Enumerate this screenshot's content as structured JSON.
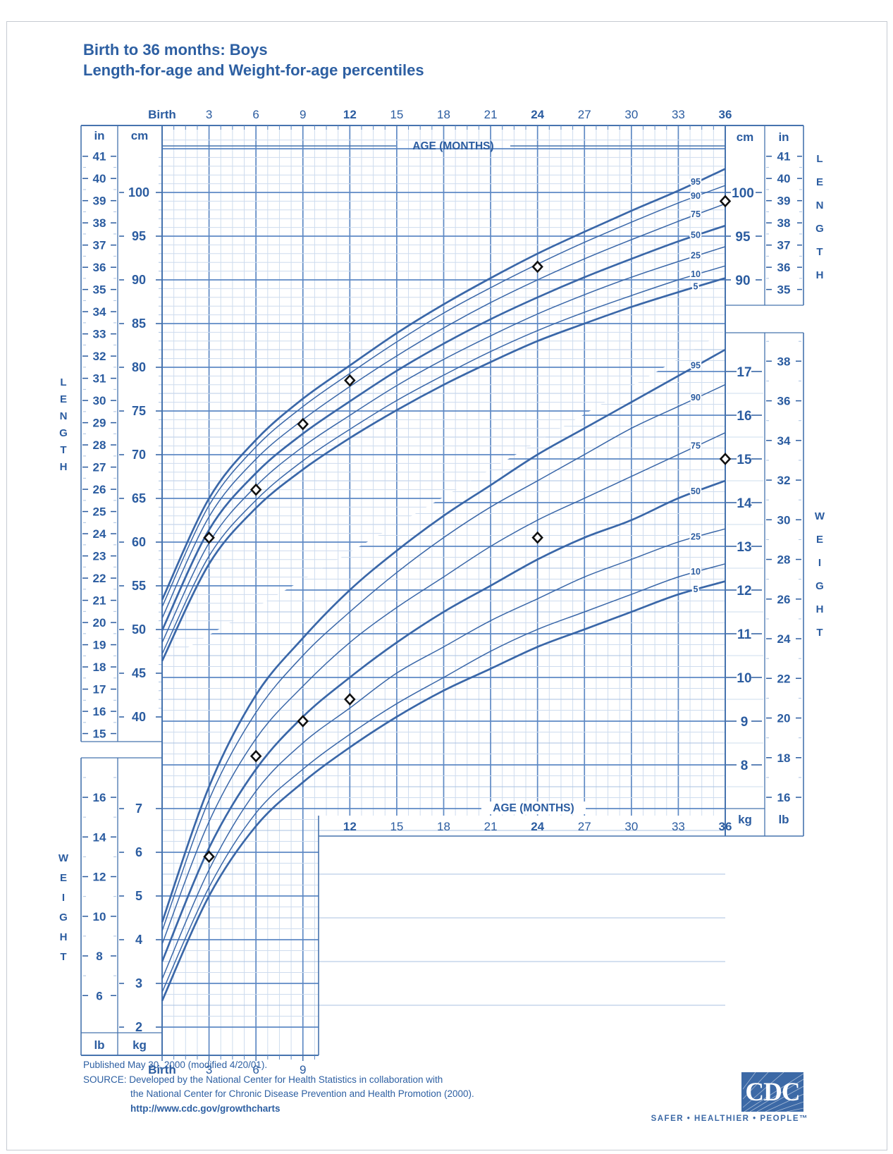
{
  "page": {
    "title_line1": "Birth to 36 months: Boys",
    "title_line2": "Length-for-age and Weight-for-age percentiles",
    "footer": {
      "published": "Published May 30, 2000 (modified 4/20/01).",
      "source_line1": "SOURCE: Developed by the National Center for Health Statistics in collaboration with",
      "source_line2": "the National Center for Chronic Disease Prevention and Health Promotion (2000).",
      "url": "http://www.cdc.gov/growthcharts"
    },
    "logo": {
      "text": "CDC",
      "tagline": "SAFER • HEALTHIER • PEOPLE™"
    }
  },
  "labels": {
    "age_axis": "AGE (MONTHS)",
    "length_vertical": "LENGTH",
    "weight_vertical": "WEIGHT",
    "in": "in",
    "cm": "cm",
    "kg": "kg",
    "lb": "lb",
    "birth": "Birth"
  },
  "scales": {
    "months_top": [
      "Birth",
      "3",
      "6",
      "9",
      "12",
      "15",
      "18",
      "21",
      "24",
      "27",
      "30",
      "33",
      "36"
    ],
    "months_bottom_right": [
      "12",
      "15",
      "18",
      "21",
      "24",
      "27",
      "30",
      "33",
      "36"
    ],
    "months_bottom_left": [
      "Birth",
      "3",
      "6",
      "9"
    ],
    "months_emphasized": [
      "Birth",
      "12",
      "24",
      "36"
    ],
    "left_in": [
      41,
      40,
      39,
      38,
      37,
      36,
      35,
      34,
      33,
      32,
      31,
      30,
      29,
      28,
      27,
      26,
      25,
      24,
      23,
      22,
      21,
      20,
      19,
      18,
      17,
      16,
      15
    ],
    "left_cm": [
      100,
      95,
      90,
      85,
      80,
      75,
      70,
      65,
      60,
      55,
      50,
      45,
      40
    ],
    "right_cm": [
      100,
      95,
      90
    ],
    "right_in": [
      41,
      40,
      39,
      38,
      37,
      36,
      35
    ],
    "right_kg": [
      17,
      16,
      15,
      14,
      13,
      12,
      11,
      10,
      9,
      8
    ],
    "right_lb": [
      38,
      36,
      34,
      32,
      30,
      28,
      26,
      24,
      22,
      20,
      18,
      16
    ],
    "left_lb": [
      16,
      14,
      12,
      10,
      8,
      6
    ],
    "left_kg": [
      7,
      6,
      5,
      4,
      3,
      2
    ]
  },
  "colors": {
    "accent_text": "#2B5CA0",
    "grid_major": "#5E89C4",
    "grid_medium": "#A9C1E1",
    "grid_minor": "#CEDCEE",
    "frame": "#4673AE",
    "curve": "#3A67A8",
    "point_stroke": "#101010",
    "point_fill": "#FFFFFF",
    "logo_bg": "#3C69A6"
  },
  "chart_data": [
    {
      "type": "line",
      "title": "Length-for-age",
      "x_label": "AGE (MONTHS)",
      "y_label": "LENGTH",
      "x_unit": "months",
      "y_unit": "cm",
      "x": [
        0,
        3,
        6,
        9,
        12,
        15,
        18,
        21,
        24,
        27,
        30,
        33,
        36
      ],
      "xlim": [
        0,
        36
      ],
      "ylim_cm": [
        40,
        107.5
      ],
      "grid": "on",
      "series": [
        {
          "name": "5th percentile",
          "label": "5",
          "weight": "thick",
          "values": [
            46.4,
            57.5,
            63.9,
            68.3,
            71.9,
            75.1,
            78.0,
            80.6,
            83.0,
            85.0,
            86.9,
            88.6,
            90.2
          ]
        },
        {
          "name": "10th percentile",
          "label": "10",
          "weight": "thin",
          "values": [
            47.2,
            58.4,
            64.8,
            69.3,
            72.9,
            76.2,
            79.1,
            81.8,
            84.2,
            86.3,
            88.2,
            90.0,
            91.6
          ]
        },
        {
          "name": "25th percentile",
          "label": "25",
          "weight": "thin",
          "values": [
            48.5,
            59.9,
            66.4,
            70.9,
            74.5,
            77.9,
            80.9,
            83.6,
            86.1,
            88.3,
            90.3,
            92.1,
            93.8
          ]
        },
        {
          "name": "50th percentile",
          "label": "50",
          "weight": "thick",
          "values": [
            49.9,
            61.4,
            67.9,
            72.4,
            76.1,
            79.6,
            82.7,
            85.5,
            88.0,
            90.3,
            92.4,
            94.4,
            96.2
          ]
        },
        {
          "name": "75th percentile",
          "label": "75",
          "weight": "thin",
          "values": [
            51.3,
            62.9,
            69.5,
            74.0,
            77.8,
            81.3,
            84.5,
            87.4,
            90.0,
            92.4,
            94.6,
            96.7,
            98.7
          ]
        },
        {
          "name": "90th percentile",
          "label": "90",
          "weight": "thin",
          "values": [
            52.6,
            64.2,
            70.9,
            75.5,
            79.3,
            82.9,
            86.2,
            89.1,
            91.8,
            94.3,
            96.6,
            98.8,
            100.8
          ]
        },
        {
          "name": "95th percentile",
          "label": "95",
          "weight": "thick",
          "values": [
            53.4,
            65.0,
            71.7,
            76.4,
            80.2,
            83.9,
            87.2,
            90.2,
            93.0,
            95.5,
            97.9,
            100.2,
            102.7
          ]
        }
      ],
      "patient_points": {
        "months": [
          3,
          6,
          9,
          12,
          24,
          36
        ],
        "cm": [
          60.5,
          66,
          73.5,
          78.5,
          91.5,
          99
        ]
      }
    },
    {
      "type": "line",
      "title": "Weight-for-age",
      "x_label": "AGE (MONTHS)",
      "y_label": "WEIGHT",
      "x_unit": "months",
      "y_unit": "kg",
      "x": [
        0,
        3,
        6,
        9,
        12,
        15,
        18,
        21,
        24,
        27,
        30,
        33,
        36
      ],
      "xlim": [
        0,
        36
      ],
      "ylim_kg": [
        2,
        18
      ],
      "grid": "on",
      "series": [
        {
          "name": "5th percentile",
          "label": "5",
          "weight": "thick",
          "values": [
            2.6,
            5.0,
            6.6,
            7.6,
            8.4,
            9.1,
            9.7,
            10.2,
            10.7,
            11.1,
            11.5,
            11.9,
            12.2
          ]
        },
        {
          "name": "10th percentile",
          "label": "10",
          "weight": "thin",
          "values": [
            2.8,
            5.2,
            6.9,
            7.9,
            8.7,
            9.4,
            10.0,
            10.6,
            11.1,
            11.5,
            11.9,
            12.3,
            12.6
          ]
        },
        {
          "name": "25th percentile",
          "label": "25",
          "weight": "thin",
          "values": [
            3.1,
            5.6,
            7.4,
            8.5,
            9.3,
            10.1,
            10.7,
            11.3,
            11.8,
            12.3,
            12.7,
            13.1,
            13.4
          ]
        },
        {
          "name": "50th percentile",
          "label": "50",
          "weight": "thick",
          "values": [
            3.5,
            6.1,
            7.9,
            9.1,
            10.0,
            10.8,
            11.5,
            12.1,
            12.7,
            13.2,
            13.6,
            14.1,
            14.5
          ]
        },
        {
          "name": "75th percentile",
          "label": "75",
          "weight": "thin",
          "values": [
            3.9,
            6.7,
            8.6,
            9.8,
            10.8,
            11.6,
            12.3,
            13.0,
            13.6,
            14.1,
            14.6,
            15.1,
            15.6
          ]
        },
        {
          "name": "90th percentile",
          "label": "90",
          "weight": "thin",
          "values": [
            4.2,
            7.2,
            9.2,
            10.5,
            11.5,
            12.4,
            13.2,
            13.9,
            14.5,
            15.1,
            15.7,
            16.2,
            16.7
          ]
        },
        {
          "name": "95th percentile",
          "label": "95",
          "weight": "thick",
          "values": [
            4.4,
            7.5,
            9.6,
            10.9,
            12.0,
            12.9,
            13.7,
            14.4,
            15.1,
            15.7,
            16.3,
            16.9,
            17.5
          ]
        }
      ],
      "patient_points": {
        "months": [
          3,
          6,
          9,
          12,
          24,
          36
        ],
        "kg": [
          5.9,
          8.2,
          9.0,
          9.5,
          13.2,
          15.0
        ]
      }
    }
  ]
}
